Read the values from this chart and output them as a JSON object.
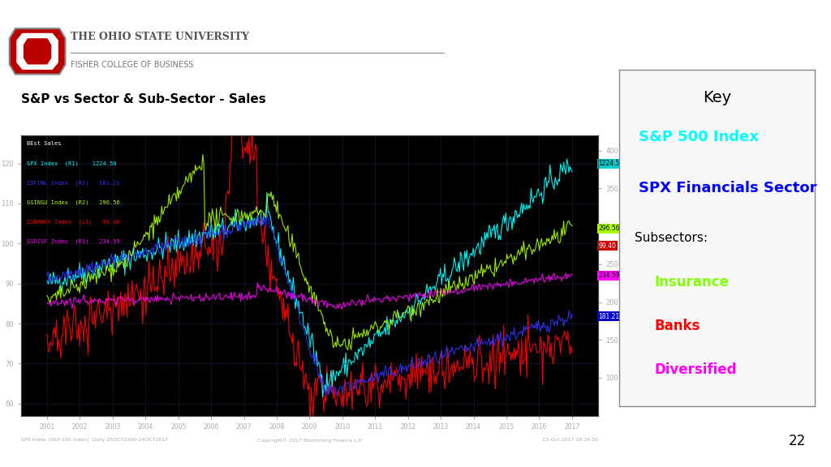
{
  "title": "S&P vs Sector & Sub-Sector - Sales",
  "chart_bg": "#000000",
  "outer_bg": "#ffffff",
  "grid_color": "#333366",
  "key_title": "Key",
  "key_items": [
    {
      "label": "S&P 500 Index",
      "color": "#00ffff"
    },
    {
      "label": "SPX Financials Sector",
      "color": "#0000ff"
    },
    {
      "label": "Subsectors:",
      "color": "#000000"
    },
    {
      "label": "Insurance",
      "color": "#80ff00"
    },
    {
      "label": "Banks",
      "color": "#ff0000"
    },
    {
      "label": "Diversified",
      "color": "#ff00ff"
    }
  ],
  "label_items_legend": [
    {
      "label": "BEst Sales",
      "color": "#ffffff"
    },
    {
      "label": "SPX Index  (R1)    1224.50",
      "color": "#00ffff"
    },
    {
      "label": "SSFINL Index  (R2)   181.21",
      "color": "#3333ff"
    },
    {
      "label": "SSINSU Index  (R2)   296.56",
      "color": "#aaff00"
    },
    {
      "label": "SSBANKX Index  (L1)   99.40",
      "color": "#ff0000"
    },
    {
      "label": "SSDIVF Index  (R1)   234.59",
      "color": "#ff00ff"
    }
  ],
  "x_labels": [
    "2001",
    "2002",
    "2003",
    "2004",
    "2005",
    "2006",
    "2007",
    "2008",
    "2009",
    "2010",
    "2011",
    "2012",
    "2013",
    "2014",
    "2015",
    "2016",
    "2017"
  ],
  "left_ticks": [
    60,
    70,
    80,
    90,
    100,
    110,
    120
  ],
  "footer_left": "SPX Index (S&P 500 Index)  Daily 25OCT2000-24OCT2017",
  "footer_center": "Copyright© 2017 Bloomberg Finance L.P.",
  "footer_right": "23-Oct-2017 18:34:50",
  "slide_number": "22"
}
